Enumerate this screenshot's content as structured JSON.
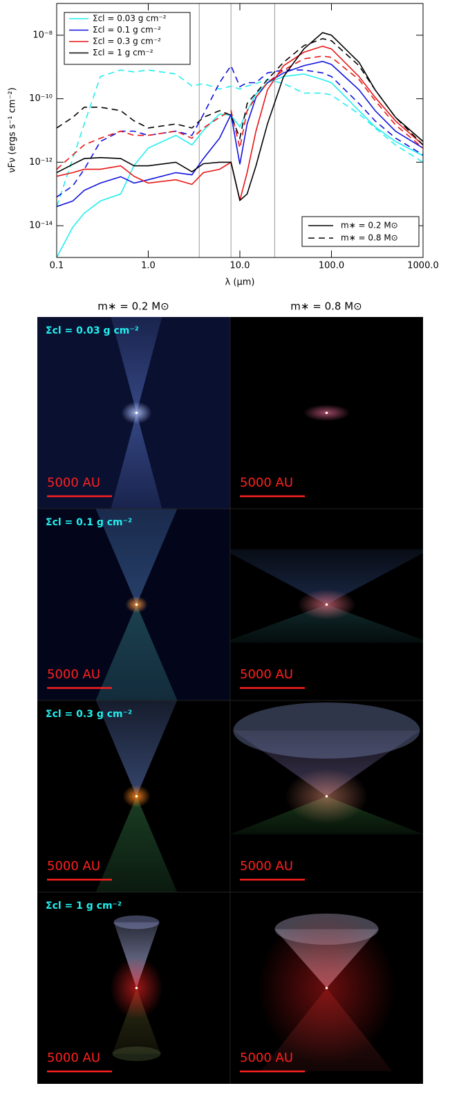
{
  "chart_data": {
    "type": "line",
    "x_label": "λ (μm)",
    "y_label": "νFν (ergs s⁻¹ cm⁻²)",
    "xlog": true,
    "ylog": true,
    "xlim": [
      0.1,
      1000
    ],
    "ylim": [
      1e-15,
      1e-07
    ],
    "xticks": [
      {
        "value": 0.1,
        "label": "0.1"
      },
      {
        "value": 1,
        "label": "1.0"
      },
      {
        "value": 10,
        "label": "10.0"
      },
      {
        "value": 100,
        "label": "100.0"
      },
      {
        "value": 1000,
        "label": "1000.0"
      }
    ],
    "yticks": [
      {
        "value": 1e-14,
        "label": "10⁻¹⁴"
      },
      {
        "value": 1e-12,
        "label": "10⁻¹²"
      },
      {
        "value": 1e-10,
        "label": "10⁻¹⁰"
      },
      {
        "value": 1e-08,
        "label": "10⁻⁸"
      }
    ],
    "vlines": [
      3.6,
      8.0,
      24.0
    ],
    "vline_color": "#999999",
    "x": [
      0.1,
      0.15,
      0.2,
      0.3,
      0.5,
      0.7,
      1,
      2,
      3,
      4,
      6,
      8,
      10,
      12,
      15,
      20,
      30,
      50,
      80,
      100,
      200,
      300,
      500,
      1000
    ],
    "line_styles": [
      {
        "name": "m∗ = 0.2 M⊙",
        "dash": "solid"
      },
      {
        "name": "m∗ = 0.8 M⊙",
        "dash": "dashed"
      }
    ],
    "series": [
      {
        "name": "Σcl = 0.03 g cm⁻²",
        "color": "#22eeee",
        "values": [
          [
            1e-15,
            9e-15,
            2.5e-14,
            6e-14,
            1e-13,
            8e-13,
            2.8e-12,
            7e-12,
            3.5e-12,
            1e-11,
            3.3e-11,
            3e-11,
            1.3e-11,
            4e-11,
            1.4e-10,
            3.2e-10,
            5e-10,
            6e-10,
            4e-10,
            3.2e-10,
            4.2e-11,
            1.3e-11,
            4.5e-12,
            1.6e-12
          ],
          [
            4e-14,
            1.3e-12,
            1.6e-11,
            5e-10,
            8e-10,
            7e-10,
            8e-10,
            6e-10,
            2.5e-10,
            3e-10,
            2e-10,
            2.5e-10,
            2e-10,
            2.5e-10,
            3e-10,
            4e-10,
            3e-10,
            1.5e-10,
            1.5e-10,
            1.3e-10,
            3.3e-11,
            1.2e-11,
            3.5e-12,
            1e-12
          ]
        ]
      },
      {
        "name": "Σcl = 0.1 g cm⁻²",
        "color": "#1010e0",
        "values": [
          [
            4e-14,
            6e-14,
            1.3e-13,
            2.2e-13,
            3.5e-13,
            2.2e-13,
            2.8e-13,
            4.7e-13,
            4e-13,
            1.3e-12,
            5.7e-12,
            3.2e-11,
            8.6e-13,
            1.6e-11,
            1.1e-10,
            3.2e-10,
            6.5e-10,
            1.1e-09,
            1.5e-09,
            1.2e-09,
            1.9e-10,
            4.2e-11,
            9.5e-12,
            2.8e-12
          ],
          [
            8e-14,
            1.8e-13,
            6e-13,
            4.5e-12,
            9.5e-12,
            9.5e-12,
            7e-12,
            9.5e-12,
            7e-12,
            3.2e-11,
            3.2e-10,
            1.1e-09,
            2.4e-10,
            3.2e-10,
            3.2e-10,
            6.5e-10,
            8e-10,
            8e-10,
            6.5e-10,
            5e-10,
            7e-11,
            2e-11,
            5.8e-12,
            1.7e-12
          ]
        ]
      },
      {
        "name": "Σcl = 0.3 g cm⁻²",
        "color": "#e81414",
        "values": [
          [
            3.6e-13,
            4.7e-13,
            6e-13,
            6e-13,
            7.7e-13,
            3.6e-13,
            2.2e-13,
            2.8e-13,
            2e-13,
            4.7e-13,
            6e-13,
            1e-12,
            6.3e-14,
            4.7e-13,
            9.5e-12,
            1.9e-10,
            1.1e-09,
            2.9e-09,
            4.5e-09,
            3.7e-09,
            5e-10,
            1.1e-10,
            2e-11,
            3.5e-12
          ],
          [
            6e-13,
            1.7e-12,
            3.5e-12,
            5.7e-12,
            9.5e-12,
            7e-12,
            7e-12,
            9.5e-12,
            5.7e-12,
            1.2e-11,
            2.6e-11,
            4.2e-11,
            2.8e-12,
            4.2e-11,
            1.1e-10,
            3.2e-10,
            8e-10,
            1.8e-09,
            2.2e-09,
            2e-09,
            4e-10,
            8.8e-11,
            1.5e-11,
            2.8e-12
          ]
        ]
      },
      {
        "name": "Σcl = 1 g cm⁻²",
        "color": "#000000",
        "values": [
          [
            4.7e-13,
            8.6e-13,
            1.3e-12,
            1.4e-12,
            1.3e-12,
            7.7e-13,
            7.7e-13,
            1e-12,
            5e-13,
            9e-13,
            1e-12,
            1e-12,
            6.3e-14,
            1e-13,
            7.7e-13,
            1.6e-11,
            5e-10,
            3.7e-09,
            1.2e-08,
            1e-08,
            1.4e-09,
            1.9e-10,
            2.6e-11,
            4.5e-12
          ],
          [
            1.2e-11,
            2.6e-11,
            5.4e-11,
            5.4e-11,
            4.2e-11,
            2e-11,
            1.2e-11,
            1.6e-11,
            1.2e-11,
            2.6e-11,
            4.2e-11,
            3e-11,
            5.7e-12,
            7e-11,
            1.5e-10,
            4e-10,
            1.4e-09,
            4.7e-09,
            7.8e-09,
            6.7e-09,
            1.1e-09,
            1.9e-10,
            2.6e-11,
            3.5e-12
          ]
        ]
      }
    ]
  },
  "image_grid": {
    "columns": [
      "m∗ = 0.2 M⊙",
      "m∗ = 0.8 M⊙"
    ],
    "rows": [
      "Σcl = 0.03 g cm⁻²",
      "Σcl = 0.1 g cm⁻²",
      "Σcl = 0.3 g cm⁻²",
      "Σcl = 1 g cm⁻²"
    ],
    "scale_label": "5000 AU"
  }
}
